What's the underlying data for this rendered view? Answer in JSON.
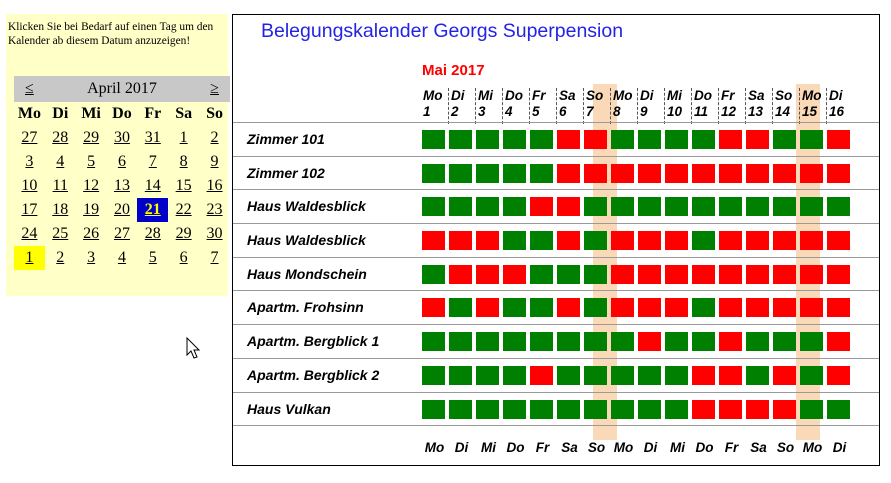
{
  "left_panel": {
    "intro": "Klicken Sie bei Bedarf auf einen Tag um den Kalender ab diesem Datum anzuzeigen!",
    "prev": "≤",
    "next": "≥",
    "month_title": "April 2017",
    "weekdays": [
      "Mo",
      "Di",
      "Mi",
      "Do",
      "Fr",
      "Sa",
      "So"
    ],
    "weeks": [
      [
        "27",
        "28",
        "29",
        "30",
        "31",
        "1",
        "2"
      ],
      [
        "3",
        "4",
        "5",
        "6",
        "7",
        "8",
        "9"
      ],
      [
        "10",
        "11",
        "12",
        "13",
        "14",
        "15",
        "16"
      ],
      [
        "17",
        "18",
        "19",
        "20",
        "21",
        "22",
        "23"
      ],
      [
        "24",
        "25",
        "26",
        "27",
        "28",
        "29",
        "30"
      ],
      [
        "1",
        "2",
        "3",
        "4",
        "5",
        "6",
        "7"
      ]
    ],
    "today": "21",
    "selected": "1"
  },
  "main": {
    "title": "Belegungskalender  Georgs Superpension",
    "month": "Mai 2017",
    "days": [
      {
        "wd": "Mo",
        "d": "1"
      },
      {
        "wd": "Di",
        "d": "2"
      },
      {
        "wd": "Mi",
        "d": "3"
      },
      {
        "wd": "Do",
        "d": "4"
      },
      {
        "wd": "Fr",
        "d": "5"
      },
      {
        "wd": "Sa",
        "d": "6"
      },
      {
        "wd": "So",
        "d": "7"
      },
      {
        "wd": "Mo",
        "d": "8"
      },
      {
        "wd": "Di",
        "d": "9"
      },
      {
        "wd": "Mi",
        "d": "10"
      },
      {
        "wd": "Do",
        "d": "11"
      },
      {
        "wd": "Fr",
        "d": "12"
      },
      {
        "wd": "Sa",
        "d": "13"
      },
      {
        "wd": "So",
        "d": "14"
      },
      {
        "wd": "Mo",
        "d": "15"
      },
      {
        "wd": "Di",
        "d": "16"
      }
    ],
    "rooms": [
      {
        "name": "Zimmer 101",
        "occ": "GGGGGRRGGGGRRGGR"
      },
      {
        "name": "Zimmer 102",
        "occ": "GGGGGRRRRRRRRRRR"
      },
      {
        "name": "Haus Waldesblick",
        "occ": "GGGGRRGGGGGGGGGG"
      },
      {
        "name": "Haus Waldesblick",
        "occ": "RRRGGRGRRRGRRRRR"
      },
      {
        "name": "Haus Mondschein",
        "occ": "GRRRGGGRRRRRRRRR"
      },
      {
        "name": "Apartm. Frohsinn",
        "occ": "RGRGGRGRRRGRRRRR"
      },
      {
        "name": "Apartm. Bergblick 1",
        "occ": "GGGGGGGGRGGRGGGR"
      },
      {
        "name": "Apartm. Bergblick 2",
        "occ": "GGGGRGGGGGRRGRGR"
      },
      {
        "name": "Haus Vulkan",
        "occ": "GGGGGGGGGGRRRRGG"
      }
    ]
  },
  "colors": {
    "free": "#008000",
    "booked": "#ff0000",
    "sunday": "#fad9b8",
    "panel": "#ffffc8",
    "title": "#2323e6"
  }
}
